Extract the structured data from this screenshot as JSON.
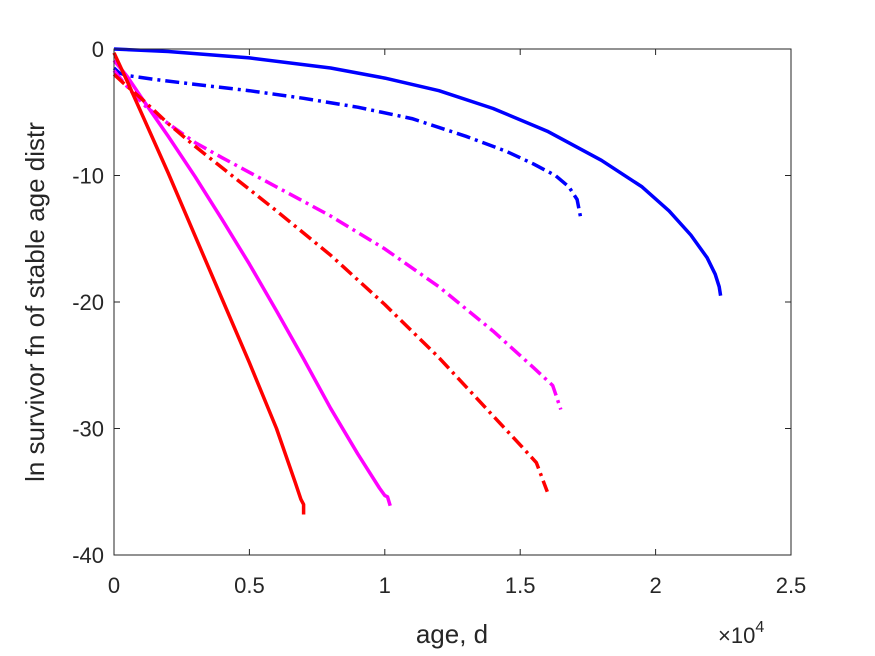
{
  "chart_data": {
    "type": "line",
    "title": "",
    "xlabel": "age, d",
    "ylabel": "ln survivor fn of stable age distr",
    "x_multiplier_label": "×10",
    "x_multiplier_exponent": "4",
    "xlim": [
      0,
      25000
    ],
    "ylim": [
      -40,
      0
    ],
    "xticks": [
      0,
      5000,
      10000,
      15000,
      20000,
      25000
    ],
    "xtick_labels": [
      "0",
      "0.5",
      "1",
      "1.5",
      "2",
      "2.5"
    ],
    "yticks": [
      0,
      -10,
      -20,
      -30,
      -40
    ],
    "ytick_labels": [
      "0",
      "-10",
      "-20",
      "-30",
      "-40"
    ],
    "grid": false,
    "legend": "none",
    "series": [
      {
        "color": "#0000ff",
        "style": "solid",
        "points": [
          [
            0,
            0
          ],
          [
            2000,
            -0.2
          ],
          [
            5000,
            -0.7
          ],
          [
            8000,
            -1.5
          ],
          [
            10000,
            -2.3
          ],
          [
            12000,
            -3.3
          ],
          [
            14000,
            -4.7
          ],
          [
            16000,
            -6.5
          ],
          [
            18000,
            -8.8
          ],
          [
            19500,
            -10.9
          ],
          [
            20500,
            -12.8
          ],
          [
            21300,
            -14.7
          ],
          [
            21900,
            -16.5
          ],
          [
            22200,
            -17.8
          ],
          [
            22350,
            -18.8
          ],
          [
            22400,
            -19.5
          ]
        ]
      },
      {
        "color": "#0000ff",
        "style": "dashdot",
        "points": [
          [
            0,
            -1.5
          ],
          [
            200,
            -1.9
          ],
          [
            500,
            -2.1
          ],
          [
            1500,
            -2.4
          ],
          [
            3000,
            -2.8
          ],
          [
            5000,
            -3.3
          ],
          [
            7000,
            -3.9
          ],
          [
            9000,
            -4.6
          ],
          [
            11000,
            -5.5
          ],
          [
            13000,
            -6.9
          ],
          [
            14500,
            -8.1
          ],
          [
            15500,
            -9.1
          ],
          [
            16300,
            -10.0
          ],
          [
            16800,
            -10.9
          ],
          [
            17100,
            -11.9
          ],
          [
            17250,
            -13.5
          ]
        ]
      },
      {
        "color": "#ff00ff",
        "style": "dashdot",
        "points": [
          [
            0,
            -1.7
          ],
          [
            300,
            -2.5
          ],
          [
            700,
            -3.5
          ],
          [
            1200,
            -4.6
          ],
          [
            2000,
            -5.9
          ],
          [
            3000,
            -7.4
          ],
          [
            4000,
            -8.6
          ],
          [
            6000,
            -10.9
          ],
          [
            8000,
            -13.2
          ],
          [
            10000,
            -15.8
          ],
          [
            12000,
            -18.8
          ],
          [
            14000,
            -22.3
          ],
          [
            15500,
            -25.2
          ],
          [
            16200,
            -26.6
          ],
          [
            16500,
            -28.5
          ]
        ]
      },
      {
        "color": "#ff00ff",
        "style": "solid",
        "points": [
          [
            0,
            -0.9
          ],
          [
            500,
            -2.2
          ],
          [
            1000,
            -3.8
          ],
          [
            2000,
            -6.9
          ],
          [
            3000,
            -10.1
          ],
          [
            4000,
            -13.5
          ],
          [
            5000,
            -17.0
          ],
          [
            6000,
            -20.7
          ],
          [
            7000,
            -24.5
          ],
          [
            8000,
            -28.4
          ],
          [
            9000,
            -32.0
          ],
          [
            9800,
            -34.7
          ],
          [
            10000,
            -35.3
          ],
          [
            10100,
            -35.4
          ],
          [
            10200,
            -36.1
          ]
        ]
      },
      {
        "color": "#ff0000",
        "style": "dashdot",
        "points": [
          [
            0,
            -2.0
          ],
          [
            300,
            -2.6
          ],
          [
            1000,
            -3.9
          ],
          [
            2000,
            -5.9
          ],
          [
            3000,
            -7.7
          ],
          [
            4000,
            -9.4
          ],
          [
            6000,
            -12.8
          ],
          [
            8000,
            -16.3
          ],
          [
            10000,
            -20.2
          ],
          [
            12000,
            -24.4
          ],
          [
            14000,
            -29.0
          ],
          [
            15000,
            -31.3
          ],
          [
            15600,
            -32.7
          ],
          [
            16000,
            -35.0
          ]
        ]
      },
      {
        "color": "#ff0000",
        "style": "solid",
        "points": [
          [
            0,
            -0.3
          ],
          [
            500,
            -2.6
          ],
          [
            1000,
            -5.0
          ],
          [
            2000,
            -9.8
          ],
          [
            3000,
            -14.8
          ],
          [
            4000,
            -19.8
          ],
          [
            5000,
            -24.8
          ],
          [
            6000,
            -30.0
          ],
          [
            6700,
            -34.3
          ],
          [
            6900,
            -35.6
          ],
          [
            7000,
            -36.0
          ],
          [
            7000,
            -36.8
          ]
        ]
      }
    ]
  }
}
